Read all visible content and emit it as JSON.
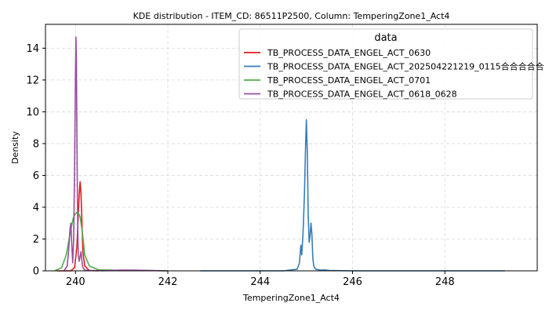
{
  "chart_data": {
    "type": "line",
    "title": "KDE distribution - ITEM_CD: 86511P2500, Column: TemperingZone1_Act4",
    "xlabel": "TemperingZone1_Act4",
    "ylabel": "Density",
    "xlim": [
      239.35,
      250.0
    ],
    "ylim": [
      0,
      15.5
    ],
    "xticks": [
      240,
      242,
      244,
      246,
      248
    ],
    "yticks": [
      0,
      2,
      4,
      6,
      8,
      10,
      12,
      14
    ],
    "grid": true,
    "legend": {
      "title": "data",
      "placement": "top-right"
    },
    "series": [
      {
        "name": "TB_PROCESS_DATA_ENGEL_ACT_0630",
        "color": "#e41a1c",
        "x": [
          239.6,
          239.9,
          239.98,
          240.03,
          240.06,
          240.08,
          240.1,
          240.12,
          240.14,
          240.16,
          240.2,
          240.3,
          240.5
        ],
        "y": [
          0,
          0,
          0.2,
          1.5,
          3.5,
          4.8,
          5.6,
          4.8,
          3.0,
          1.2,
          0.3,
          0.02,
          0
        ]
      },
      {
        "name": "TB_PROCESS_DATA_ENGEL_ACT_202504221219_0115合合合合合",
        "color": "#377eb8",
        "x": [
          242.7,
          244.5,
          244.8,
          244.85,
          244.88,
          244.9,
          244.93,
          244.96,
          244.98,
          245.0,
          245.02,
          245.04,
          245.06,
          245.08,
          245.1,
          245.12,
          245.14,
          245.16,
          245.2,
          245.3,
          245.4,
          245.5,
          246.0,
          249.3
        ],
        "y": [
          0,
          0,
          0.1,
          0.5,
          1.6,
          1.0,
          2.5,
          5.0,
          7.5,
          9.5,
          7.5,
          3.5,
          1.8,
          2.2,
          3.0,
          2.3,
          0.8,
          0.3,
          0.1,
          0.05,
          0.06,
          0.02,
          0,
          0
        ]
      },
      {
        "name": "TB_PROCESS_DATA_ENGEL_ACT_0701",
        "color": "#4daf4a",
        "x": [
          239.55,
          239.7,
          239.8,
          239.9,
          239.95,
          240.0,
          240.05,
          240.1,
          240.15,
          240.2,
          240.3,
          240.5,
          241.0,
          241.3,
          241.6,
          242.0
        ],
        "y": [
          0,
          0.2,
          1.0,
          2.6,
          3.3,
          3.6,
          3.7,
          3.4,
          2.4,
          1.0,
          0.3,
          0.06,
          0.03,
          0.04,
          0.02,
          0
        ]
      },
      {
        "name": "TB_PROCESS_DATA_ENGEL_ACT_0618_0628",
        "color": "#984ea3",
        "x": [
          239.75,
          239.82,
          239.85,
          239.88,
          239.9,
          239.92,
          239.94,
          239.96,
          239.98,
          240.0,
          240.01,
          240.02,
          240.03,
          240.04,
          240.05,
          240.06,
          240.08,
          240.1,
          240.12,
          240.14,
          240.16,
          240.2,
          240.3,
          240.6,
          241.0,
          241.3,
          241.6,
          242.0
        ],
        "y": [
          0,
          0.3,
          1.2,
          2.6,
          3.0,
          1.6,
          0.5,
          2.0,
          6.5,
          12.5,
          14.7,
          13.0,
          8.8,
          5.0,
          2.5,
          1.0,
          0.6,
          0.9,
          1.2,
          0.6,
          0.2,
          0.05,
          0.02,
          0.01,
          0.05,
          0.04,
          0.02,
          0
        ]
      }
    ]
  }
}
